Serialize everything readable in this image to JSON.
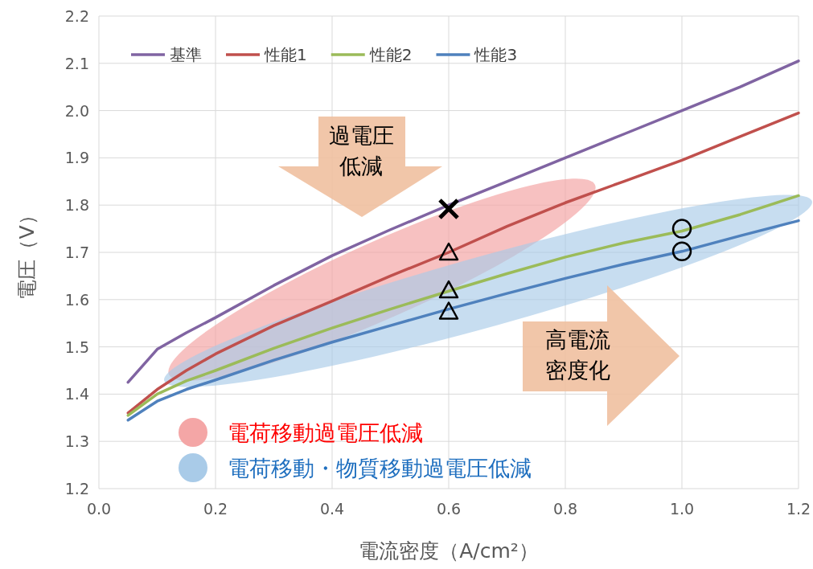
{
  "chart_data": {
    "type": "line",
    "xlabel": "電流密度（A/cm²）",
    "ylabel": "電圧（V）",
    "xlim": [
      0,
      1.2
    ],
    "ylim": [
      1.2,
      2.2
    ],
    "xticks": [
      {
        "value": 0,
        "label": "0.0"
      },
      {
        "value": 0.2,
        "label": "0.2"
      },
      {
        "value": 0.4,
        "label": "0.4"
      },
      {
        "value": 0.6,
        "label": "0.6"
      },
      {
        "value": 0.8,
        "label": "0.8"
      },
      {
        "value": 1.0,
        "label": "1.0"
      },
      {
        "value": 1.2,
        "label": "1.2"
      }
    ],
    "yticks": [
      {
        "value": 1.2,
        "label": "1.2"
      },
      {
        "value": 1.3,
        "label": "1.3"
      },
      {
        "value": 1.4,
        "label": "1.4"
      },
      {
        "value": 1.5,
        "label": "1.5"
      },
      {
        "value": 1.6,
        "label": "1.6"
      },
      {
        "value": 1.7,
        "label": "1.7"
      },
      {
        "value": 1.8,
        "label": "1.8"
      },
      {
        "value": 1.9,
        "label": "1.9"
      },
      {
        "value": 2.0,
        "label": "2.0"
      },
      {
        "value": 2.1,
        "label": "2.1"
      },
      {
        "value": 2.2,
        "label": "2.2"
      }
    ],
    "grid": true,
    "legend": "top left",
    "line_style": "solid",
    "series": [
      {
        "name": "基準",
        "color": "#8064a2",
        "x": [
          0.05,
          0.1,
          0.15,
          0.2,
          0.3,
          0.4,
          0.5,
          0.6,
          0.7,
          0.8,
          0.9,
          1.0,
          1.1,
          1.2
        ],
        "values": [
          1.425,
          1.495,
          1.53,
          1.562,
          1.63,
          1.693,
          1.748,
          1.8,
          1.85,
          1.9,
          1.95,
          2.0,
          2.05,
          2.105
        ]
      },
      {
        "name": "性能1",
        "color": "#c0504d",
        "x": [
          0.05,
          0.1,
          0.15,
          0.2,
          0.3,
          0.4,
          0.5,
          0.6,
          0.7,
          0.8,
          0.9,
          1.0,
          1.1,
          1.2
        ],
        "values": [
          1.36,
          1.41,
          1.45,
          1.485,
          1.545,
          1.597,
          1.65,
          1.7,
          1.755,
          1.805,
          1.85,
          1.895,
          1.945,
          1.995
        ]
      },
      {
        "name": "性能2",
        "color": "#9bbb59",
        "x": [
          0.05,
          0.1,
          0.15,
          0.2,
          0.3,
          0.4,
          0.5,
          0.6,
          0.7,
          0.8,
          0.9,
          1.0,
          1.1,
          1.2
        ],
        "values": [
          1.355,
          1.4,
          1.428,
          1.45,
          1.497,
          1.54,
          1.58,
          1.618,
          1.655,
          1.69,
          1.72,
          1.745,
          1.78,
          1.82
        ]
      },
      {
        "name": "性能3",
        "color": "#4f81bd",
        "x": [
          0.05,
          0.1,
          0.15,
          0.2,
          0.3,
          0.4,
          0.5,
          0.6,
          0.7,
          0.8,
          0.9,
          1.0,
          1.1,
          1.2
        ],
        "values": [
          1.345,
          1.385,
          1.41,
          1.43,
          1.472,
          1.51,
          1.545,
          1.58,
          1.613,
          1.645,
          1.675,
          1.702,
          1.735,
          1.767
        ]
      },
      {
        "type": "scatter",
        "marker": "cross",
        "color": "#000000",
        "x": [
          0.6
        ],
        "values": [
          1.792
        ]
      },
      {
        "type": "scatter",
        "marker": "triangle",
        "color": "#000000",
        "x": [
          0.6,
          0.6,
          0.6
        ],
        "values": [
          1.7,
          1.62,
          1.575
        ]
      },
      {
        "type": "scatter",
        "marker": "circle",
        "color": "#000000",
        "x": [
          1.0,
          1.0
        ],
        "values": [
          1.75,
          1.702
        ]
      }
    ],
    "annotations": [
      "過電圧",
      "低減",
      "高電流",
      "密度化",
      "電荷移動過電圧低減",
      "電荷移動・物質移動過電圧低減"
    ]
  }
}
